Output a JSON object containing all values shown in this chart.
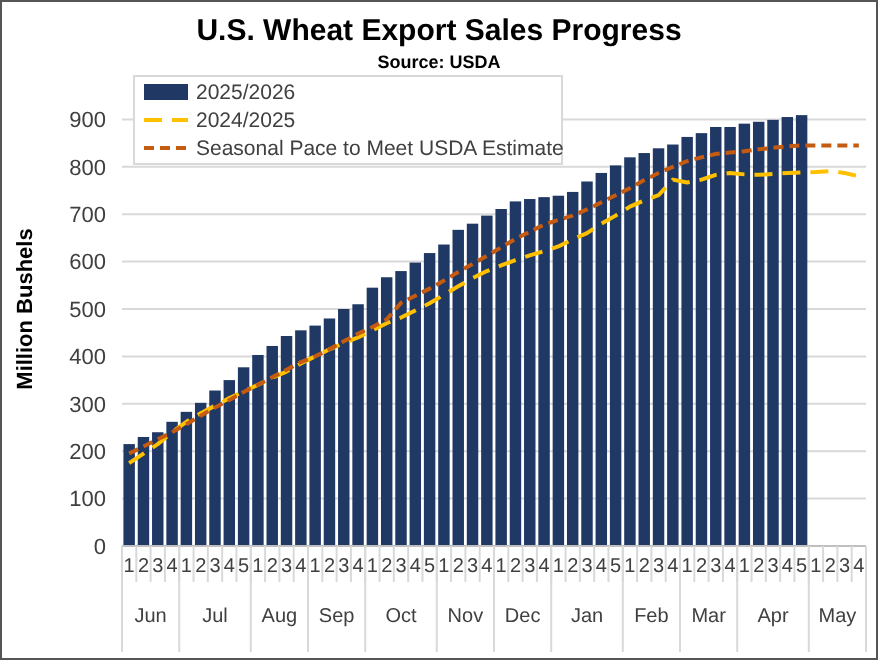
{
  "chart_data": {
    "type": "bar",
    "title": "U.S. Wheat Export Sales Progress",
    "subtitle": "Source: USDA",
    "ylabel": "Million Bushels",
    "categories": [
      "1",
      "2",
      "3",
      "4",
      "1",
      "2",
      "3",
      "4",
      "5",
      "1",
      "2",
      "3",
      "4",
      "1",
      "2",
      "3",
      "4",
      "1",
      "2",
      "3",
      "4",
      "5",
      "1",
      "2",
      "3",
      "4",
      "1",
      "2",
      "3",
      "4",
      "1",
      "2",
      "3",
      "4",
      "5",
      "1",
      "2",
      "3",
      "4",
      "1",
      "2",
      "3",
      "4",
      "1",
      "2",
      "3",
      "4",
      "5",
      "1",
      "2",
      "3",
      "4"
    ],
    "annotations": [
      "Jun",
      "Jul",
      "Aug",
      "Sep",
      "Oct",
      "Nov",
      "Dec",
      "Jan",
      "Feb",
      "Mar",
      "Apr",
      "May"
    ],
    "series": [
      {
        "name": "2025/2026",
        "color": "#1f3864",
        "values": [
          215,
          230,
          240,
          262,
          283,
          302,
          328,
          350,
          377,
          403,
          422,
          443,
          455,
          465,
          480,
          500,
          510,
          545,
          567,
          580,
          598,
          618,
          636,
          667,
          680,
          697,
          711,
          727,
          732,
          736,
          739,
          747,
          769,
          787,
          803,
          820,
          829,
          839,
          847,
          863,
          871,
          884,
          884,
          891,
          895,
          899,
          905,
          909,
          null,
          null,
          null,
          null
        ]
      },
      {
        "name": "2024/2025",
        "type": "line",
        "color": "#ffc000",
        "line_style": "dashed",
        "values": [
          175,
          195,
          215,
          240,
          262,
          280,
          296,
          312,
          326,
          340,
          355,
          368,
          385,
          400,
          415,
          428,
          440,
          455,
          470,
          482,
          497,
          512,
          530,
          548,
          565,
          580,
          592,
          603,
          613,
          622,
          632,
          647,
          660,
          680,
          697,
          716,
          729,
          740,
          773,
          767,
          773,
          783,
          787,
          784,
          783,
          785,
          787,
          788,
          789,
          791,
          787,
          780
        ]
      },
      {
        "name": "Seasonal Pace to Meet USDA Estimate",
        "type": "line",
        "color": "#c55a11",
        "line_style": "dashed",
        "values": [
          195,
          210,
          225,
          240,
          257,
          275,
          292,
          308,
          325,
          340,
          356,
          372,
          388,
          400,
          415,
          432,
          448,
          462,
          478,
          513,
          528,
          543,
          560,
          578,
          595,
          612,
          630,
          648,
          663,
          678,
          688,
          697,
          710,
          725,
          740,
          755,
          772,
          787,
          800,
          812,
          820,
          827,
          830,
          833,
          837,
          840,
          843,
          845,
          845,
          845,
          845,
          845
        ]
      }
    ],
    "ylim": [
      0,
      1000
    ],
    "yticks": [
      0,
      100,
      200,
      300,
      400,
      500,
      600,
      700,
      800,
      900
    ],
    "grid": "y",
    "legend": "top left"
  }
}
